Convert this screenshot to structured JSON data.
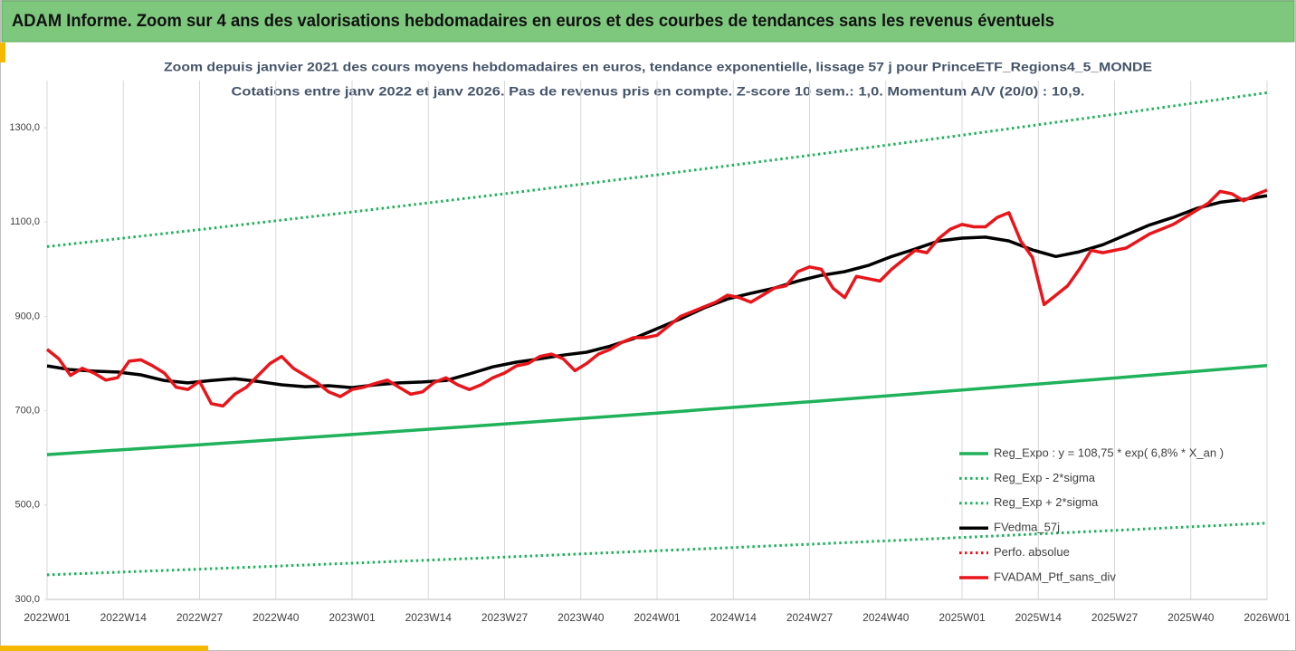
{
  "header": {
    "title": "ADAM Informe. Zoom sur 4 ans des valorisations hebdomadaires en euros et des courbes de tendances sans les revenus éventuels"
  },
  "chart_data": {
    "type": "line",
    "title": "Zoom depuis janvier 2021 des cours moyens hebdomadaires  en euros, tendance exponentielle, lissage 57 j pour PrinceETF_Regions4_5_MONDE",
    "subtitle": "Cotations entre janv 2022 et janv 2026. Pas de revenus pris en compte. Z-score 10 sem.: 1,0. Momentum  A/V (20/0) : 10,9.",
    "xlim": [
      0,
      208
    ],
    "xticks": [
      {
        "value": 0,
        "label": "2022W01"
      },
      {
        "value": 13,
        "label": "2022W14"
      },
      {
        "value": 26,
        "label": "2022W27"
      },
      {
        "value": 39,
        "label": "2022W40"
      },
      {
        "value": 52,
        "label": "2023W01"
      },
      {
        "value": 65,
        "label": "2023W14"
      },
      {
        "value": 78,
        "label": "2023W27"
      },
      {
        "value": 91,
        "label": "2023W40"
      },
      {
        "value": 104,
        "label": "2024W01"
      },
      {
        "value": 117,
        "label": "2024W14"
      },
      {
        "value": 130,
        "label": "2024W27"
      },
      {
        "value": 143,
        "label": "2024W40"
      },
      {
        "value": 156,
        "label": "2025W01"
      },
      {
        "value": 169,
        "label": "2025W14"
      },
      {
        "value": 182,
        "label": "2025W27"
      },
      {
        "value": 195,
        "label": "2025W40"
      },
      {
        "value": 208,
        "label": "2026W01"
      }
    ],
    "ylim": [
      300,
      1400
    ],
    "yticks": [
      {
        "value": 300,
        "label": "300,0"
      },
      {
        "value": 500,
        "label": "500,0"
      },
      {
        "value": 700,
        "label": "700,0"
      },
      {
        "value": 900,
        "label": "900,0"
      },
      {
        "value": 1100,
        "label": "1100,0"
      },
      {
        "value": 1300,
        "label": "1300,0"
      }
    ],
    "xgrid": true,
    "legend": "bottom-right",
    "series": [
      {
        "name": "Reg_Expo : y = 108,75 * exp( 6,8% *  X_an )",
        "color": "#1fb25a",
        "style": "solid",
        "width": 3.5,
        "x": [
          0,
          26,
          52,
          78,
          104,
          130,
          156,
          182,
          208
        ],
        "values": [
          607,
          627.9,
          649.5,
          671.9,
          695.1,
          719.0,
          743.8,
          769.4,
          795.9
        ]
      },
      {
        "name": "Reg_Exp - 2*sigma",
        "color": "#1fb25a",
        "style": "dotted",
        "width": 3,
        "x": [
          0,
          26,
          52,
          78,
          104,
          130,
          156,
          182,
          208
        ],
        "values": [
          1048,
          1084.1,
          1121.4,
          1160.1,
          1200.1,
          1241.4,
          1284.2,
          1328.5,
          1374.3
        ]
      },
      {
        "name": "Reg_Exp + 2*sigma",
        "color": "#1fb25a",
        "style": "dotted",
        "width": 3,
        "x": [
          0,
          26,
          52,
          78,
          104,
          130,
          156,
          182,
          208
        ],
        "values": [
          352,
          364.1,
          376.7,
          389.7,
          403.1,
          417.0,
          431.4,
          446.2,
          461.6
        ]
      },
      {
        "name": "FVedma_57j",
        "color": "#000000",
        "style": "solid",
        "width": 3.5,
        "x": [
          0,
          4,
          8,
          12,
          16,
          20,
          24,
          28,
          32,
          36,
          40,
          44,
          48,
          52,
          56,
          60,
          64,
          68,
          72,
          76,
          80,
          84,
          88,
          92,
          96,
          100,
          104,
          108,
          112,
          116,
          120,
          124,
          128,
          132,
          136,
          140,
          144,
          148,
          152,
          156,
          160,
          164,
          168,
          172,
          176,
          180,
          184,
          188,
          192,
          196,
          200,
          204,
          208
        ],
        "values": [
          795,
          787,
          784,
          782,
          776,
          764,
          759,
          764,
          768,
          762,
          755,
          751,
          753,
          749,
          755,
          759,
          761,
          764,
          778,
          793,
          803,
          810,
          818,
          824,
          837,
          853,
          874,
          895,
          918,
          937,
          949,
          960,
          975,
          987,
          995,
          1008,
          1027,
          1043,
          1060,
          1066,
          1068,
          1060,
          1041,
          1027,
          1037,
          1052,
          1073,
          1094,
          1110,
          1129,
          1142,
          1148,
          1156
        ]
      },
      {
        "name": "Perfo. absolue",
        "color": "#e8161b",
        "style": "dotted",
        "width": 3,
        "x": [],
        "values": []
      },
      {
        "name": "FVADAM_Ptf_sans_div",
        "color": "#e8161b",
        "style": "solid",
        "width": 3.5,
        "x": [
          0,
          2,
          4,
          6,
          8,
          10,
          12,
          14,
          16,
          18,
          20,
          22,
          24,
          26,
          28,
          30,
          32,
          34,
          36,
          38,
          40,
          42,
          44,
          46,
          48,
          50,
          52,
          54,
          56,
          58,
          60,
          62,
          64,
          66,
          68,
          70,
          72,
          74,
          76,
          78,
          80,
          82,
          84,
          86,
          88,
          90,
          92,
          94,
          96,
          98,
          100,
          102,
          104,
          106,
          108,
          110,
          112,
          114,
          116,
          118,
          120,
          122,
          124,
          126,
          128,
          130,
          132,
          134,
          136,
          138,
          140,
          142,
          144,
          146,
          148,
          150,
          152,
          154,
          156,
          158,
          160,
          162,
          164,
          166,
          168,
          170,
          172,
          174,
          176,
          178,
          180,
          182,
          184,
          186,
          188,
          190,
          192,
          194,
          196,
          198,
          200,
          202,
          204,
          206,
          208
        ],
        "values": [
          830,
          810,
          775,
          790,
          780,
          765,
          770,
          805,
          808,
          795,
          780,
          750,
          745,
          762,
          715,
          710,
          735,
          750,
          775,
          800,
          815,
          790,
          775,
          760,
          740,
          730,
          745,
          750,
          758,
          765,
          750,
          735,
          740,
          760,
          770,
          755,
          745,
          755,
          770,
          780,
          795,
          800,
          815,
          820,
          810,
          785,
          800,
          820,
          830,
          845,
          855,
          855,
          860,
          880,
          900,
          910,
          920,
          930,
          945,
          940,
          930,
          945,
          960,
          965,
          995,
          1005,
          1000,
          960,
          940,
          985,
          980,
          975,
          1000,
          1020,
          1040,
          1035,
          1065,
          1085,
          1095,
          1090,
          1090,
          1110,
          1120,
          1060,
          1025,
          925,
          945,
          965,
          1000,
          1040,
          1035,
          1040,
          1045,
          1060,
          1075,
          1085,
          1095,
          1110,
          1125,
          1140,
          1165,
          1160,
          1145,
          1158,
          1168
        ]
      }
    ]
  }
}
